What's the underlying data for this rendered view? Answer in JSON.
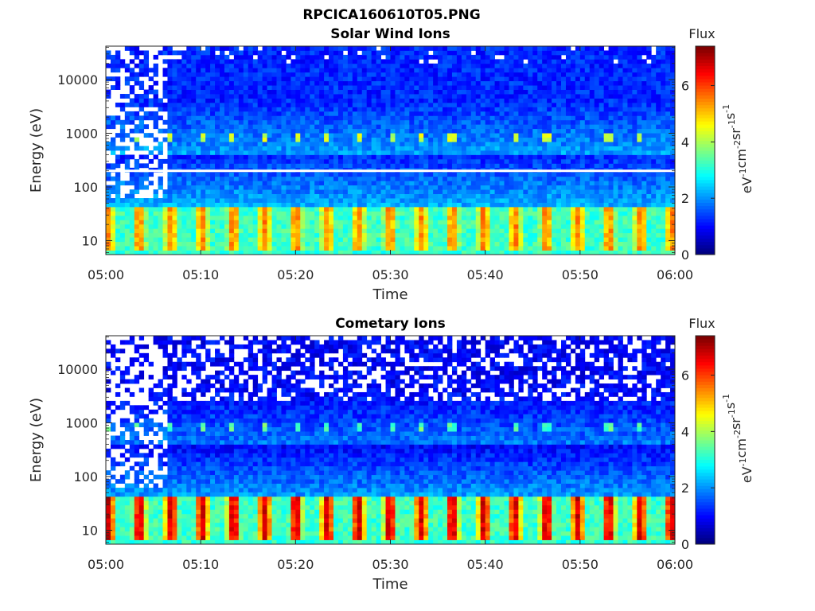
{
  "figure": {
    "title": "RPCICA160610T05.PNG"
  },
  "colormap": "jet",
  "chart_data": [
    {
      "type": "heatmap",
      "title": "Solar Wind Ions",
      "xlabel": "Time",
      "ylabel": "Energy (eV)",
      "x_ticks": [
        "05:00",
        "05:10",
        "05:20",
        "05:30",
        "05:40",
        "05:50",
        "06:00"
      ],
      "y_scale": "log",
      "y_ticks": [
        "10",
        "100",
        "1000",
        "10000"
      ],
      "ylim_eV": [
        5.5,
        42000
      ],
      "colorbar": {
        "label": "Flux",
        "unit": "eV-1cm-2sr-1s-1",
        "ticks": [
          "0",
          "2",
          "4",
          "6"
        ],
        "range": [
          0,
          7.4
        ]
      },
      "gap_line_energy_eV": 200,
      "features": {
        "low_energy_band_eV": [
          10,
          40
        ],
        "low_energy_peak_flux": 5.5,
        "mid_band_energy_eV": 800,
        "mid_band_flux": 3.8,
        "high_energy_background_flux": 1.2
      }
    },
    {
      "type": "heatmap",
      "title": "Cometary Ions",
      "xlabel": "Time",
      "ylabel": "Energy (eV)",
      "x_ticks": [
        "05:00",
        "05:10",
        "05:20",
        "05:30",
        "05:40",
        "05:50",
        "06:00"
      ],
      "y_scale": "log",
      "y_ticks": [
        "10",
        "100",
        "1000",
        "10000"
      ],
      "ylim_eV": [
        5.5,
        42000
      ],
      "colorbar": {
        "label": "Flux",
        "unit": "eV-1cm-2sr-1s-1",
        "ticks": [
          "0",
          "2",
          "4",
          "6"
        ],
        "range": [
          0,
          7.4
        ]
      },
      "features": {
        "low_energy_band_eV": [
          10,
          40
        ],
        "low_energy_peak_flux": 6.8,
        "mid_band_energy_eV": 800,
        "mid_band_flux": 3.0,
        "high_energy_background_flux": 0.9
      }
    }
  ]
}
